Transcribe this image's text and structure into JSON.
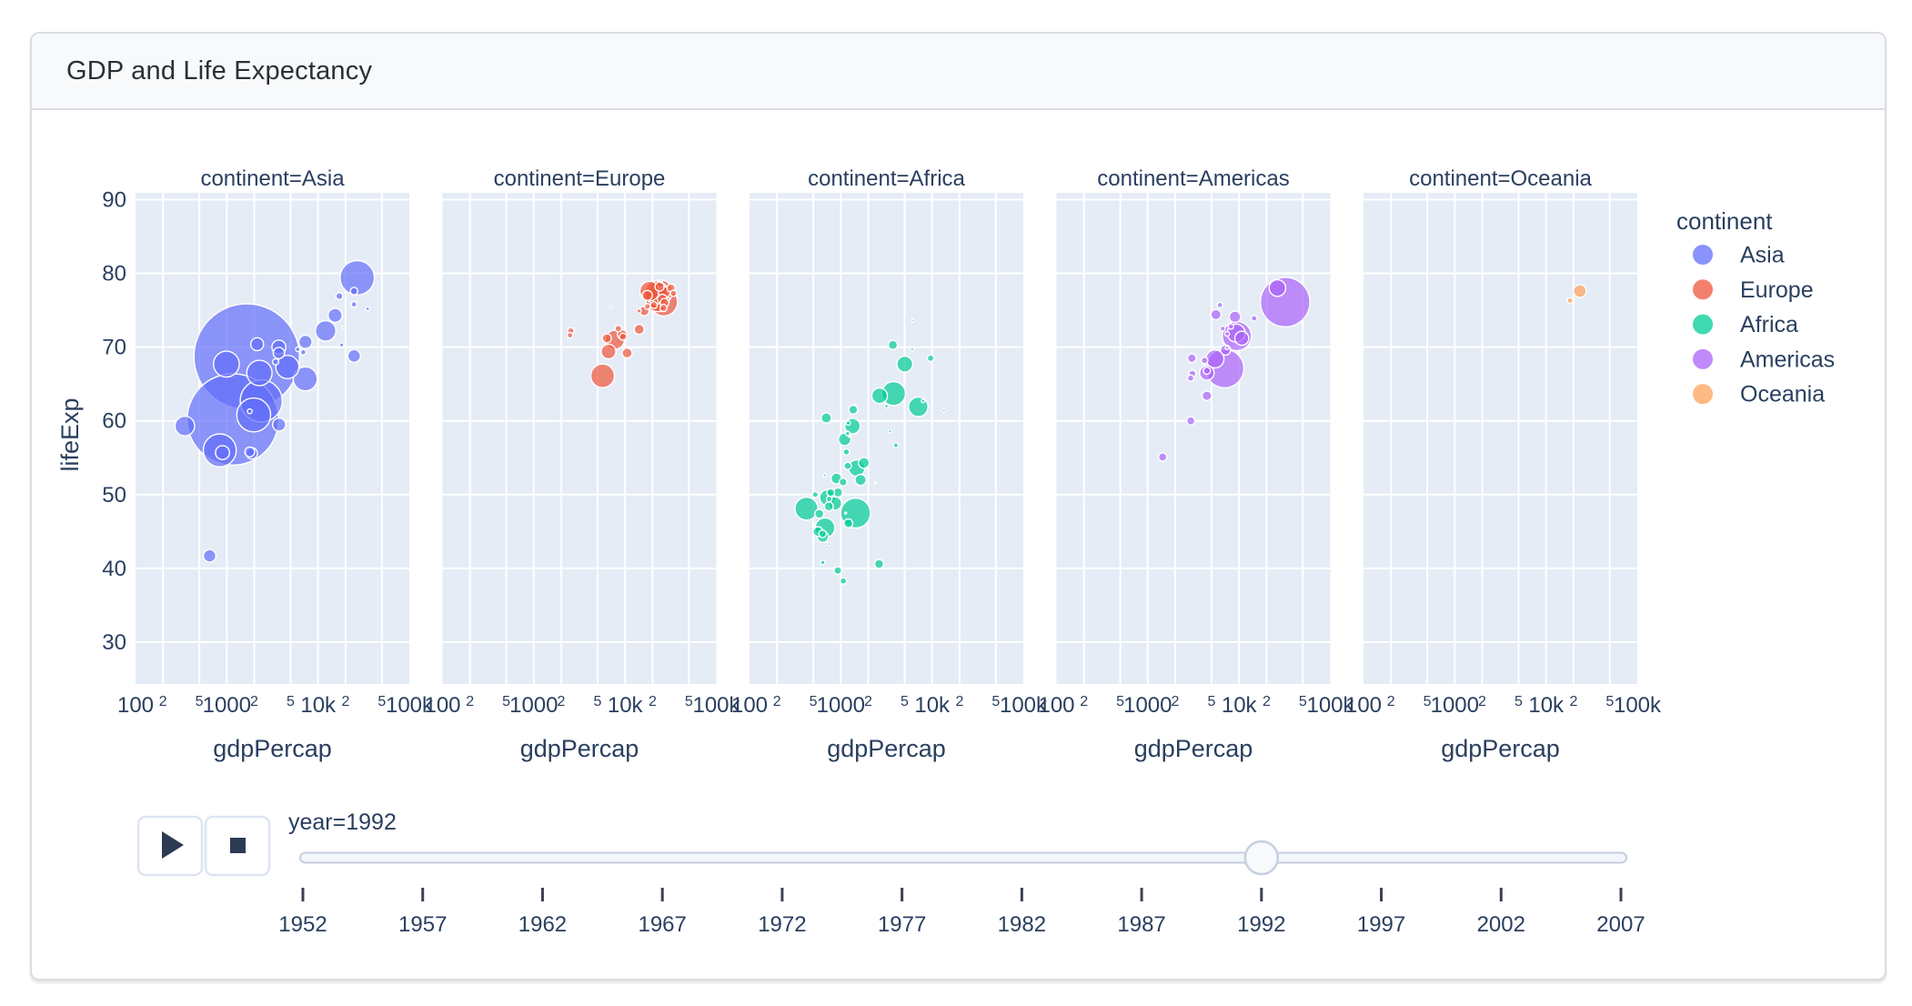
{
  "window": {
    "title": "GDP and Life Expectancy"
  },
  "chart_data": {
    "type": "scatter",
    "subtype": "faceted-animated-bubble",
    "xlabel": "gdpPercap",
    "ylabel": "lifeExp",
    "x_scale": "log",
    "x_range": [
      100,
      100000
    ],
    "y_range": [
      24,
      91
    ],
    "grid": true,
    "plot_bg": "#E5ECF6",
    "grid_color": "#ffffff",
    "text_color": "#2a3f5f",
    "y_ticks": [
      90,
      80,
      70,
      60,
      50,
      40,
      30
    ],
    "x_ticks": [
      {
        "v": 100,
        "label": "100",
        "minor": false
      },
      {
        "v": 200,
        "label": "2",
        "minor": true
      },
      {
        "v": 500,
        "label": "5",
        "minor": true
      },
      {
        "v": 1000,
        "label": "1000",
        "minor": false
      },
      {
        "v": 2000,
        "label": "2",
        "minor": true
      },
      {
        "v": 5000,
        "label": "5",
        "minor": true
      },
      {
        "v": 10000,
        "label": "10k",
        "minor": false
      },
      {
        "v": 20000,
        "label": "2",
        "minor": true
      },
      {
        "v": 50000,
        "label": "5",
        "minor": true
      },
      {
        "v": 100000,
        "label": "100k",
        "minor": false
      }
    ],
    "point_format": [
      "gdpPercap",
      "lifeExp",
      "bubble_radius_px"
    ],
    "facets": [
      {
        "label": "continent=Asia",
        "continent": "Asia",
        "color": "#636EFA",
        "points": [
          [
            649,
            41.7,
            6.9
          ],
          [
            19035,
            72.6,
            1.2
          ],
          [
            837,
            56.0,
            18.1
          ],
          [
            1785,
            55.8,
            5.4
          ],
          [
            1656,
            68.7,
            58
          ],
          [
            24757,
            77.6,
            4.1
          ],
          [
            1164,
            60.2,
            50.2
          ],
          [
            2383,
            62.7,
            23.1
          ],
          [
            7235,
            65.7,
            13.2
          ],
          [
            3745,
            59.5,
            7.2
          ],
          [
            17122,
            76.9,
            3.8
          ],
          [
            26825,
            79.4,
            18.9
          ],
          [
            3431,
            68.0,
            3.4
          ],
          [
            3726,
            70.0,
            7.7
          ],
          [
            12104,
            72.2,
            11.3
          ],
          [
            34932,
            75.2,
            2.0
          ],
          [
            6890,
            69.3,
            3.0
          ],
          [
            7277,
            70.7,
            7.3
          ],
          [
            1785,
            61.3,
            2.6
          ],
          [
            347,
            59.3,
            10.8
          ],
          [
            897,
            55.7,
            7.7
          ],
          [
            18115,
            70.3,
            2.3
          ],
          [
            1972,
            60.8,
            18.6
          ],
          [
            2279,
            66.5,
            13.9
          ],
          [
            24841,
            68.8,
            7.0
          ],
          [
            24770,
            75.8,
            3.0
          ],
          [
            2153,
            70.4,
            7.1
          ],
          [
            3726,
            69.2,
            6.2
          ],
          [
            15363,
            74.3,
            7.7
          ],
          [
            4616,
            67.3,
            12.8
          ],
          [
            989,
            67.7,
            14.2
          ],
          [
            6017,
            69.7,
            2.5
          ],
          [
            1879,
            55.6,
            6.2
          ]
        ]
      },
      {
        "label": "continent=Europe",
        "continent": "Europe",
        "color": "#EF553B",
        "points": [
          [
            2497,
            71.6,
            3.1
          ],
          [
            27042,
            76.0,
            4.8
          ],
          [
            25576,
            76.5,
            5.4
          ],
          [
            2547,
            72.2,
            3.5
          ],
          [
            6303,
            71.2,
            5.0
          ],
          [
            8448,
            72.5,
            3.6
          ],
          [
            14297,
            72.4,
            5.5
          ],
          [
            26407,
            75.3,
            3.9
          ],
          [
            20647,
            75.7,
            3.8
          ],
          [
            24704,
            77.5,
            12.9
          ],
          [
            26505,
            76.1,
            15.3
          ],
          [
            17541,
            77.0,
            5.5
          ],
          [
            10536,
            69.2,
            5.5
          ],
          [
            25144,
            78.8,
            0.9
          ],
          [
            17559,
            75.5,
            3.2
          ],
          [
            22013,
            77.4,
            12.8
          ],
          [
            7003,
            75.4,
            1.3
          ],
          [
            26791,
            77.4,
            6.6
          ],
          [
            33965,
            77.3,
            3.5
          ],
          [
            7739,
            71.0,
            10.5
          ],
          [
            16207,
            74.9,
            5.3
          ],
          [
            6598,
            69.4,
            8.1
          ],
          [
            9325,
            71.7,
            5.3
          ],
          [
            9498,
            71.4,
            3.9
          ],
          [
            14214,
            74.9,
            2.4
          ],
          [
            18603,
            77.6,
            10.7
          ],
          [
            23880,
            78.2,
            5.0
          ],
          [
            31871,
            78.0,
            4.5
          ],
          [
            5678,
            66.1,
            13.0
          ],
          [
            22705,
            76.4,
            12.9
          ]
        ]
      },
      {
        "label": "continent=Africa",
        "continent": "Africa",
        "color": "#00CC96",
        "points": [
          [
            5023,
            67.7,
            8.7
          ],
          [
            2628,
            40.6,
            5.0
          ],
          [
            1191,
            53.9,
            4.0
          ],
          [
            7954,
            62.7,
            1.9
          ],
          [
            931,
            50.3,
            5.1
          ],
          [
            631,
            44.7,
            4.1
          ],
          [
            1793,
            54.3,
            6.0
          ],
          [
            747,
            49.4,
            3.0
          ],
          [
            1058,
            51.7,
            4.3
          ],
          [
            1246,
            57.9,
            1.1
          ],
          [
            672,
            45.5,
            10.9
          ],
          [
            4016,
            56.7,
            2.6
          ],
          [
            1648,
            52.0,
            6.1
          ],
          [
            2377,
            51.6,
            1.0
          ],
          [
            3794,
            63.7,
            13.1
          ],
          [
            1132,
            47.5,
            1.0
          ],
          [
            525,
            50.0,
            3.2
          ],
          [
            421,
            48.1,
            12.6
          ],
          [
            13522,
            61.4,
            1.6
          ],
          [
            665,
            52.6,
            1.6
          ],
          [
            1103,
            57.5,
            6.9
          ],
          [
            776,
            50.3,
            4.3
          ],
          [
            745,
            43.3,
            1.6
          ],
          [
            1342,
            59.3,
            8.5
          ],
          [
            1210,
            59.7,
            2.3
          ],
          [
            636,
            40.8,
            2.3
          ],
          [
            9640,
            68.5,
            3.6
          ],
          [
            894,
            52.2,
            5.9
          ],
          [
            563,
            45.0,
            5.4
          ],
          [
            739,
            48.4,
            4.9
          ],
          [
            1191,
            58.3,
            2.5
          ],
          [
            6058,
            69.7,
            1.7
          ],
          [
            2665,
            63.4,
            8.6
          ],
          [
            634,
            44.3,
            6.2
          ],
          [
            3173,
            62.0,
            2.0
          ],
          [
            581,
            47.4,
            4.9
          ],
          [
            1452,
            47.5,
            16.4
          ],
          [
            6101,
            73.6,
            1.4
          ],
          [
            1367,
            61.5,
            4.8
          ],
          [
            1068,
            38.3,
            3.5
          ],
          [
            926,
            39.7,
            4.2
          ],
          [
            7062,
            61.9,
            10.7
          ],
          [
            1492,
            53.6,
            9.0
          ],
          [
            3451,
            58.6,
            1.7
          ],
          [
            718,
            49.6,
            8.8
          ],
          [
            1153,
            55.8,
            3.4
          ],
          [
            3726,
            70.3,
            5.0
          ],
          [
            864,
            48.8,
            7.3
          ],
          [
            1210,
            46.1,
            4.9
          ],
          [
            693,
            60.4,
            5.6
          ],
          [
            1429,
            62.2,
            0.7
          ]
        ]
      },
      {
        "label": "continent=Americas",
        "continent": "Americas",
        "color": "#AB63FA",
        "points": [
          [
            9308,
            71.9,
            9.9
          ],
          [
            2961,
            60.0,
            4.5
          ],
          [
            6950,
            67.1,
            21.2
          ],
          [
            26343,
            78.0,
            9.1
          ],
          [
            9021,
            74.1,
            6.3
          ],
          [
            5444,
            68.4,
            9.9
          ],
          [
            6160,
            75.7,
            3.0
          ],
          [
            5592,
            74.4,
            5.6
          ],
          [
            3044,
            68.5,
            4.7
          ],
          [
            7103,
            69.6,
            5.6
          ],
          [
            4444,
            66.8,
            3.9
          ],
          [
            4439,
            63.4,
            5.2
          ],
          [
            1456,
            55.1,
            4.5
          ],
          [
            3081,
            66.4,
            3.8
          ],
          [
            7405,
            71.8,
            2.6
          ],
          [
            9472,
            71.5,
            16.0
          ],
          [
            2955,
            65.8,
            3.5
          ],
          [
            6618,
            72.5,
            2.7
          ],
          [
            4196,
            68.2,
            3.6
          ],
          [
            4446,
            66.5,
            8.0
          ],
          [
            14641,
            73.9,
            3.2
          ],
          [
            7370,
            69.9,
            1.9
          ],
          [
            32003,
            76.1,
            27.2
          ],
          [
            8137,
            72.8,
            3.0
          ],
          [
            10733,
            71.2,
            7.7
          ]
        ]
      },
      {
        "label": "continent=Oceania",
        "continent": "Oceania",
        "color": "#FFA15A",
        "points": [
          [
            23425,
            77.6,
            7.1
          ],
          [
            18363,
            76.3,
            3.1
          ]
        ]
      }
    ],
    "legend": {
      "title": "continent",
      "items": [
        {
          "label": "Asia",
          "color": "#636EFA"
        },
        {
          "label": "Europe",
          "color": "#EF553B"
        },
        {
          "label": "Africa",
          "color": "#00CC96"
        },
        {
          "label": "Americas",
          "color": "#AB63FA"
        },
        {
          "label": "Oceania",
          "color": "#FFA15A"
        }
      ]
    }
  },
  "animation": {
    "current_frame_label": "year=1992",
    "current_year": 1992,
    "years": [
      1952,
      1957,
      1962,
      1967,
      1972,
      1977,
      1982,
      1987,
      1992,
      1997,
      2002,
      2007
    ],
    "controls": [
      {
        "name": "play",
        "icon": "play-icon"
      },
      {
        "name": "stop",
        "icon": "stop-icon"
      }
    ]
  }
}
